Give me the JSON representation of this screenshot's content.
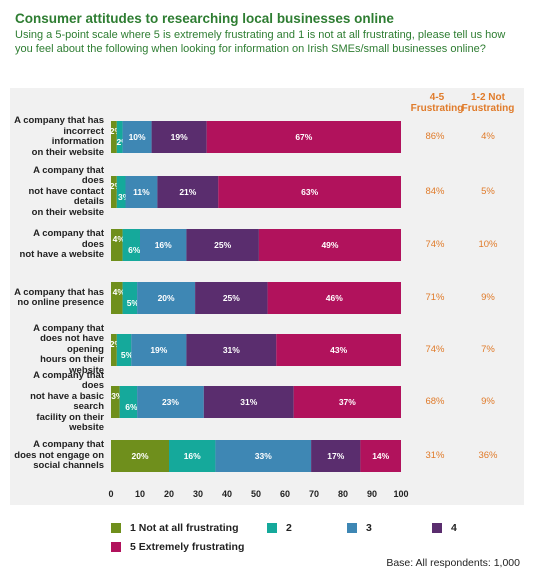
{
  "header": {
    "title": "Consumer attitudes to researching local businesses online",
    "subtitle": "Using a 5-point scale where 5 is extremely frustrating and 1 is not at all frustrating, please tell us how you feel about the following when looking for information on Irish SMEs/small businesses online?"
  },
  "columns": {
    "frustrating": "4-5 Frustrating",
    "not_frustrating": "1-2 Not Frustrating"
  },
  "footer": {
    "base": "Base: All respondents: 1,000"
  },
  "chart_data": {
    "type": "bar",
    "orientation": "horizontal",
    "stacked": true,
    "xlim": [
      0,
      100
    ],
    "xticks": [
      0,
      10,
      20,
      30,
      40,
      50,
      60,
      70,
      80,
      90,
      100
    ],
    "categories": [
      "A company that has incorrect information on their website",
      "A company that does not have contact details on their website",
      "A company that does not have a website",
      "A company that has no online presence",
      "A company that does not have opening hours on their website",
      "A company that does not have a basic search facility on their website",
      "A company that does not engage on social channels"
    ],
    "series": [
      {
        "name": "1 Not at all frustrating",
        "color": "#6f8f1c",
        "values": [
          2,
          2,
          4,
          4,
          2,
          3,
          20
        ]
      },
      {
        "name": "2",
        "color": "#15a99b",
        "values": [
          2,
          3,
          6,
          5,
          5,
          6,
          16
        ]
      },
      {
        "name": "3",
        "color": "#3e87b4",
        "values": [
          10,
          11,
          16,
          20,
          19,
          23,
          33
        ]
      },
      {
        "name": "4",
        "color": "#5a2d6e",
        "values": [
          19,
          21,
          25,
          25,
          31,
          31,
          17
        ]
      },
      {
        "name": "5 Extremely frustrating",
        "color": "#b1125c",
        "values": [
          67,
          63,
          49,
          46,
          43,
          37,
          14
        ]
      }
    ],
    "frustrating_4_5": [
      "86%",
      "84%",
      "74%",
      "71%",
      "74%",
      "68%",
      "31%"
    ],
    "not_frustrating_1_2": [
      "4%",
      "5%",
      "10%",
      "9%",
      "7%",
      "9%",
      "36%"
    ]
  }
}
